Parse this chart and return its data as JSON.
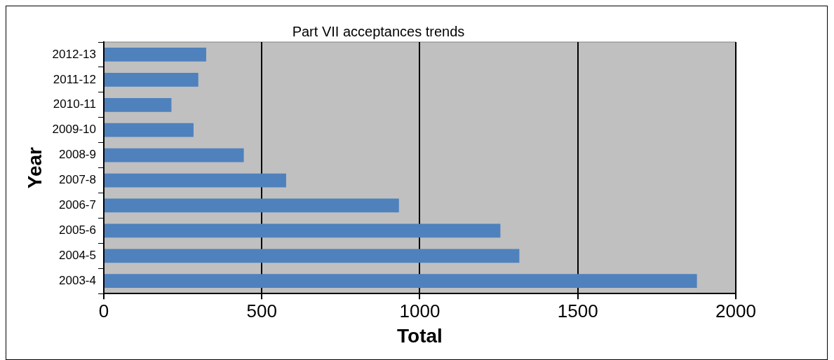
{
  "chart_data": {
    "type": "bar",
    "orientation": "horizontal",
    "title": "Part VII acceptances trends",
    "xlabel": "Total",
    "ylabel": "Year",
    "categories": [
      "2012-13",
      "2011-12",
      "2010-11",
      "2009-10",
      "2008-9",
      "2007-8",
      "2006-7",
      "2005-6",
      "2004-5",
      "2003-4"
    ],
    "values": [
      324,
      299,
      214,
      284,
      443,
      577,
      934,
      1255,
      1315,
      1877
    ],
    "color": "#4f81bd",
    "xlim": [
      0,
      2000
    ],
    "xticks": [
      0,
      500,
      1000,
      1500,
      2000
    ],
    "grid": "x"
  }
}
